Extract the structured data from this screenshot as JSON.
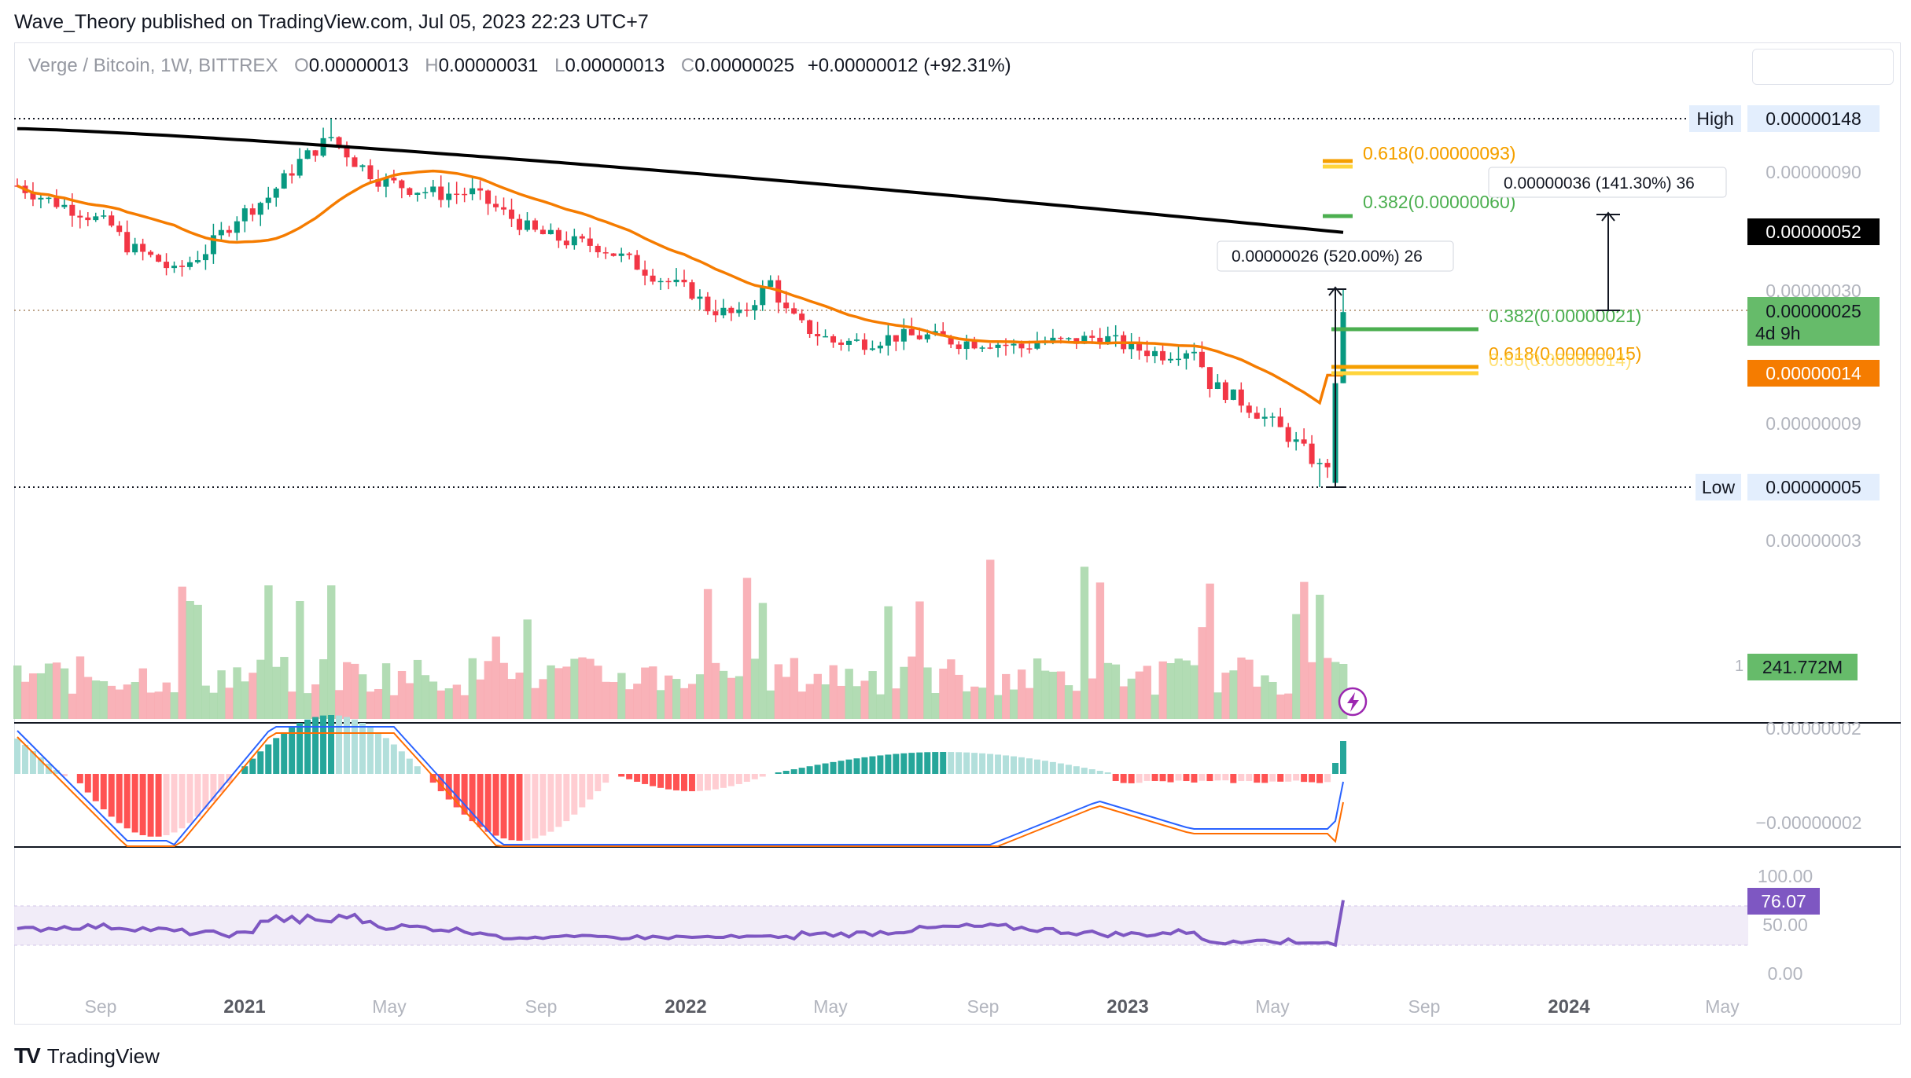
{
  "header": {
    "publisher": "Wave_Theory published on TradingView.com, Jul 05, 2023 22:23 UTC+7"
  },
  "symbol_bar": {
    "name": "Verge / Bitcoin, 1W, BITTREX",
    "open_label": "O",
    "open": "0.00000013",
    "high_label": "H",
    "high": "0.00000031",
    "low_label": "L",
    "low": "0.00000013",
    "close_label": "C",
    "close": "0.00000025",
    "change": "+0.00000012 (+92.31%)"
  },
  "price_axis": {
    "labels": [
      "0.00000090",
      "0.00000030",
      "0.00000009",
      "0.00000003"
    ],
    "high_tag": {
      "label": "High",
      "value": "0.00000148"
    },
    "low_tag": {
      "label": "Low",
      "value": "0.00000005"
    },
    "ma200_tag": "0.00000052",
    "last_price_tag": "0.00000025",
    "countdown": "4d 9h",
    "ma50_tag": "0.00000014",
    "volume_tag": "241.772M",
    "volume_tag_suffix": "1"
  },
  "fib_levels": [
    {
      "label": "0.618(0.00000093)",
      "color": "#f59f00"
    },
    {
      "label": "0.618(0.00000093)",
      "color": "#ffd43b"
    },
    {
      "label": "0.382(0.00000060)",
      "color": "#4caf50"
    },
    {
      "label": "0.382(0.00000021)",
      "color": "#4caf50"
    },
    {
      "label": "0.618(0.00000015)",
      "color": "#f59f00"
    },
    {
      "label": "0.65(0.00000014)",
      "color": "#ffd43b"
    }
  ],
  "measure_tools": [
    {
      "label": "0.00000026 (520.00%) 26"
    },
    {
      "label": "0.00000036 (141.30%) 36"
    }
  ],
  "macd_axis": [
    "0.00000002",
    "−0.00000002"
  ],
  "rsi_axis": [
    "100.00",
    "50.00",
    "0.00"
  ],
  "rsi_tag": "76.07",
  "time_axis": [
    "Sep",
    "2021",
    "May",
    "Sep",
    "2022",
    "May",
    "Sep",
    "2023",
    "May",
    "Sep",
    "2024",
    "May"
  ],
  "footer": {
    "brand": "TradingView",
    "logo": "TV"
  },
  "colors": {
    "up": "#089981",
    "down": "#f23645",
    "ma50": "#f57c00",
    "ma200": "#000000",
    "macd": "#2962ff",
    "signal": "#ff6d00",
    "rsi": "#7e57c2",
    "green_tag": "#66bb6a"
  },
  "chart_data": [
    {
      "type": "candlestick",
      "title": "Verge / Bitcoin, 1W, BITTREX",
      "scale": "log",
      "ylim": [
        5e-08,
        1.48e-06
      ],
      "x": [
        "2020-08",
        "2020-09",
        "2020-10",
        "2020-11",
        "2020-12",
        "2021-01",
        "2021-02",
        "2021-03",
        "2021-04",
        "2021-05",
        "2021-06",
        "2021-07",
        "2021-08",
        "2021-09",
        "2021-10",
        "2021-11",
        "2021-12",
        "2022-01",
        "2022-02",
        "2022-03",
        "2022-04",
        "2022-05",
        "2022-06",
        "2022-07",
        "2022-08",
        "2022-09",
        "2022-10",
        "2022-11",
        "2022-12",
        "2023-01",
        "2023-02",
        "2023-03",
        "2023-04",
        "2023-05",
        "2023-06",
        "2023-07"
      ],
      "close": [
        8e-07,
        6.8e-07,
        5.5e-07,
        4.5e-07,
        3.8e-07,
        4.5e-07,
        6e-07,
        7e-07,
        1e-06,
        1.2e-06,
        8.5e-07,
        7.5e-07,
        7.2e-07,
        7e-07,
        5.8e-07,
        5e-07,
        4.8e-07,
        3.5e-07,
        3e-07,
        2.8e-07,
        3e-07,
        2e-07,
        1.9e-07,
        2e-07,
        2e-07,
        2e-07,
        1.9e-07,
        1.8e-07,
        1.9e-07,
        1.8e-07,
        1.7e-07,
        1.2e-07,
        1e-07,
        9e-08,
        7e-08,
        2.5e-07
      ],
      "ma50_last": 1.4e-07,
      "ma200_last": 5.2e-07,
      "fib_levels": [
        {
          "ratio": 0.618,
          "price": 9.3e-07
        },
        {
          "ratio": 0.382,
          "price": 6e-07
        },
        {
          "ratio": 0.382,
          "price": 2.1e-07
        },
        {
          "ratio": 0.618,
          "price": 1.5e-07
        },
        {
          "ratio": 0.65,
          "price": 1.4e-07
        }
      ]
    },
    {
      "type": "area",
      "title": "Volume",
      "last": "241.772M"
    },
    {
      "type": "bar",
      "title": "MACD",
      "ylim": [
        -2e-08,
        2e-08
      ]
    },
    {
      "type": "line",
      "title": "RSI",
      "ylim": [
        0,
        100
      ],
      "last": 76.07,
      "band": [
        30,
        70
      ]
    }
  ]
}
